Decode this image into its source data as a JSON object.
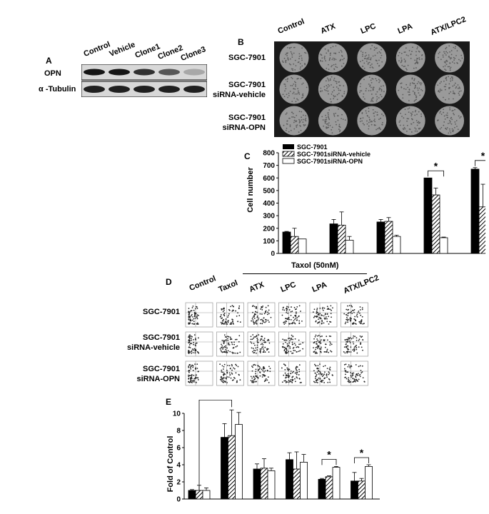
{
  "panel_a": {
    "label": "A",
    "columns": [
      "Control",
      "Vehicle",
      "Clone1",
      "Clone2",
      "Clone3"
    ],
    "rows": [
      "OPN",
      "α -Tubulin"
    ],
    "opn_band_intensity": [
      0.9,
      0.9,
      0.78,
      0.6,
      0.22
    ],
    "tubulin_band_intensity": [
      0.85,
      0.85,
      0.85,
      0.85,
      0.85
    ]
  },
  "panel_b": {
    "label": "B",
    "columns": [
      "Control",
      "ATX",
      "LPC",
      "LPA",
      "ATX/LPC2"
    ],
    "rows": [
      {
        "line1": "SGC-7901",
        "line2": ""
      },
      {
        "line1": "SGC-7901",
        "line2": "siRNA-vehicle"
      },
      {
        "line1": "SGC-7901",
        "line2": "siRNA-OPN"
      }
    ]
  },
  "panel_d": {
    "label": "D",
    "columns": [
      "Control",
      "Taxol",
      "ATX",
      "LPC",
      "LPA",
      "ATX/LPC2"
    ],
    "treatment_header": "Taxol (50nM)",
    "rows": [
      {
        "line1": "SGC-7901",
        "line2": ""
      },
      {
        "line1": "SGC-7901",
        "line2": "siRNA-vehicle"
      },
      {
        "line1": "SGC-7901",
        "line2": "siRNA-OPN"
      }
    ]
  },
  "colors": {
    "series1": "#000000",
    "series2": "hatched",
    "series3": "#ffffff",
    "plate": "#8a8a8a"
  },
  "chart_data": [
    {
      "panel": "C",
      "type": "bar",
      "categories": [
        "Control",
        "ATX",
        "LPC",
        "LPA",
        "ATX/LPC2"
      ],
      "ylabel": "Cell number",
      "xlabel": "",
      "ylim": [
        0,
        800
      ],
      "yticks": [
        "0",
        "100",
        "200",
        "300",
        "400",
        "500",
        "600",
        "700",
        "800"
      ],
      "legend": "top-left",
      "series": [
        {
          "name": "SGC-7901",
          "values": [
            170,
            235,
            250,
            600,
            670
          ],
          "errors": [
            5,
            35,
            20,
            0,
            12
          ]
        },
        {
          "name": "SGC-7901siRNA-vehicle",
          "values": [
            135,
            225,
            255,
            465,
            370
          ],
          "errors": [
            65,
            105,
            30,
            55,
            180
          ]
        },
        {
          "name": "SGC-7901siRNA-OPN",
          "values": [
            115,
            105,
            135,
            125,
            115
          ],
          "errors": [
            0,
            30,
            10,
            5,
            5
          ]
        }
      ],
      "significance": [
        {
          "label": "*",
          "group": 3
        },
        {
          "label": "*",
          "group": 4
        }
      ]
    },
    {
      "panel": "E",
      "type": "bar",
      "categories": [
        "Control",
        "Taxol",
        "ATX",
        "LPC",
        "LPA",
        "ATX/LPC2"
      ],
      "ylabel": "Fold of Control",
      "xlabel": "",
      "ylim": [
        0,
        10
      ],
      "yticks": [
        "0",
        "2",
        "4",
        "6",
        "8",
        "10"
      ],
      "series": [
        {
          "name": "SGC-7901",
          "values": [
            1.0,
            7.2,
            3.5,
            4.6,
            2.3,
            2.1
          ],
          "errors": [
            0.1,
            1.6,
            0.6,
            0.8,
            0.1,
            1.0
          ]
        },
        {
          "name": "SGC-7901siRNA-vehicle",
          "values": [
            1.0,
            7.4,
            3.6,
            3.5,
            2.6,
            2.1
          ],
          "errors": [
            0.6,
            3.0,
            1.1,
            2.0,
            0.1,
            0.3
          ]
        },
        {
          "name": "SGC-7901siRNA-OPN",
          "values": [
            1.0,
            8.7,
            3.3,
            4.3,
            3.7,
            3.8
          ],
          "errors": [
            0.3,
            1.4,
            0.3,
            0.9,
            0.1,
            0.2
          ]
        }
      ],
      "significance": [
        {
          "label": "*",
          "group": 0,
          "to_group": 1
        },
        {
          "label": "*",
          "group": 4
        },
        {
          "label": "*",
          "group": 5
        }
      ]
    }
  ]
}
